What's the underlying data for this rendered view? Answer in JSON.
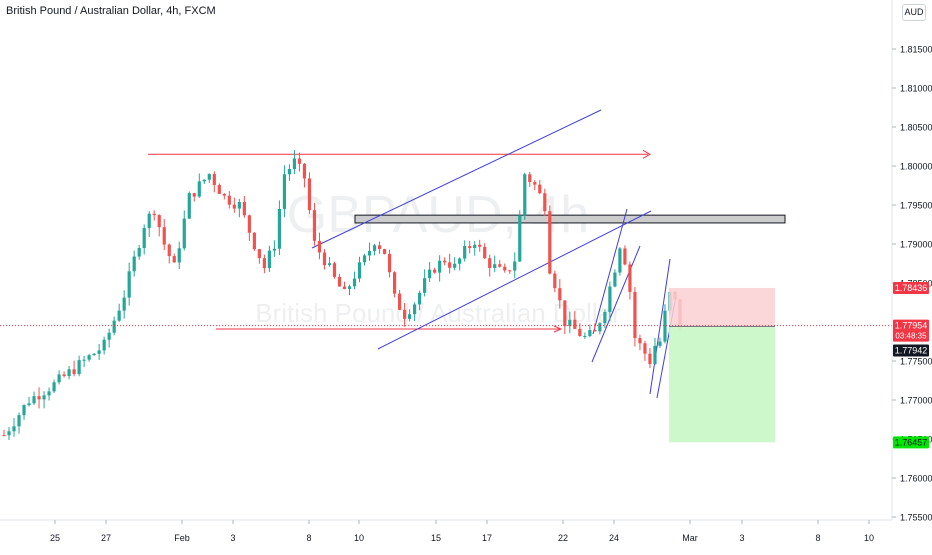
{
  "header": {
    "title": "British Pound / Australian Dollar, 4h, FXCM",
    "currency": "AUD"
  },
  "watermark": {
    "symbol": "GBPAUD, 4h",
    "name": "British Pound / Australian Dollar"
  },
  "chart_data": {
    "type": "candlestick",
    "x_ticks": [
      "25",
      "27",
      "Feb",
      "3",
      "8",
      "10",
      "15",
      "17",
      "22",
      "24",
      "Mar",
      "3",
      "8",
      "10"
    ],
    "y_ticks": [
      "1.81500",
      "1.81000",
      "1.80500",
      "1.80000",
      "1.79500",
      "1.79000",
      "1.78500",
      "1.77500",
      "1.77000",
      "1.76500",
      "1.76000",
      "1.75500"
    ],
    "ylim": [
      1.7535,
      1.8205
    ],
    "price_labels": [
      {
        "name": "stop-loss",
        "text": "1.78436",
        "value": 1.78436,
        "color": "#f23645"
      },
      {
        "name": "last-price",
        "text": "1.77954",
        "value": 1.77954,
        "color": "#f23645",
        "countdown": "03:48:35"
      },
      {
        "name": "entry",
        "text": "1.77942",
        "value": 1.77942,
        "color": "#131722"
      },
      {
        "name": "take-profit",
        "text": "1.76457",
        "value": 1.76457,
        "color": "#00e600"
      }
    ],
    "levels": [
      {
        "name": "resistance-line",
        "value": 1.8015,
        "color": "#f23645"
      },
      {
        "name": "support-line",
        "value": 1.7791,
        "color": "#f23645"
      }
    ],
    "zone": {
      "name": "resistance-zone",
      "low": 1.7927,
      "high": 1.7937,
      "color": "#cccccc"
    },
    "position": {
      "type": "short",
      "entry": 1.77942,
      "stop": 1.78436,
      "target": 1.76457,
      "profit_color": "#c8f7c5",
      "loss_color": "#fcd0d3"
    },
    "candles": {
      "up_color": "#26a69a",
      "down_color": "#ef5350"
    }
  }
}
